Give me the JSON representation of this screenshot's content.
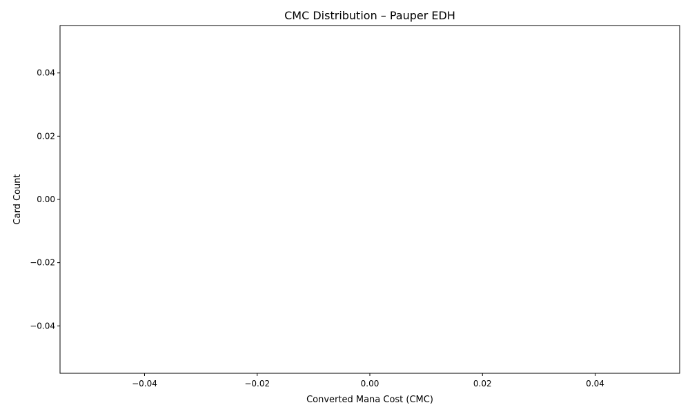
{
  "chart_data": {
    "type": "bar",
    "title": "CMC Distribution – Pauper EDH",
    "xlabel": "Converted Mana Cost (CMC)",
    "ylabel": "Card Count",
    "categories": [],
    "values": [],
    "xlim": [
      -0.055,
      0.055
    ],
    "ylim": [
      -0.055,
      0.055
    ],
    "xticks": [
      -0.04,
      -0.02,
      0.0,
      0.02,
      0.04
    ],
    "yticks": [
      -0.04,
      -0.02,
      0.0,
      0.02,
      0.04
    ],
    "xtick_labels": [
      "−0.04",
      "−0.02",
      "0.00",
      "0.02",
      "0.04"
    ],
    "ytick_labels": [
      "−0.04",
      "−0.02",
      "0.00",
      "0.02",
      "0.04"
    ],
    "grid": false,
    "legend": "none"
  }
}
